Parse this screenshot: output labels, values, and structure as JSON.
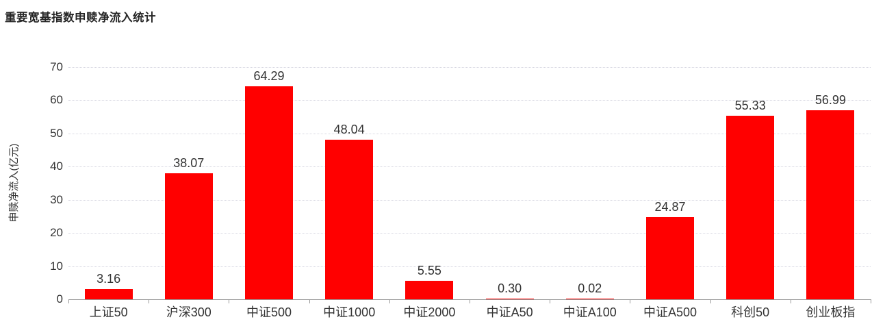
{
  "title": "重要宽基指数申赎净流入统计",
  "chart_data": {
    "type": "bar",
    "title": "重要宽基指数申赎净流入统计",
    "categories": [
      "上证50",
      "沪深300",
      "中证500",
      "中证1000",
      "中证2000",
      "中证A50",
      "中证A100",
      "中证A500",
      "科创50",
      "创业板指"
    ],
    "values": [
      3.16,
      38.07,
      64.29,
      48.04,
      5.55,
      0.3,
      0.02,
      24.87,
      55.33,
      56.99
    ],
    "value_labels": [
      "3.16",
      "38.07",
      "64.29",
      "48.04",
      "5.55",
      "0.30",
      "0.02",
      "24.87",
      "55.33",
      "56.99"
    ],
    "xlabel": "",
    "ylabel": "申赎净流入(亿元)",
    "ylim": [
      0,
      70
    ],
    "yticks": [
      0,
      10,
      20,
      30,
      40,
      50,
      60,
      70
    ],
    "grid": "horizontal-dotted",
    "legend": "none",
    "colors": {
      "bar": "#ff0000",
      "text": "#333333",
      "axis": "#999999",
      "grid": "#d6d6e0",
      "title": "#262626"
    }
  }
}
